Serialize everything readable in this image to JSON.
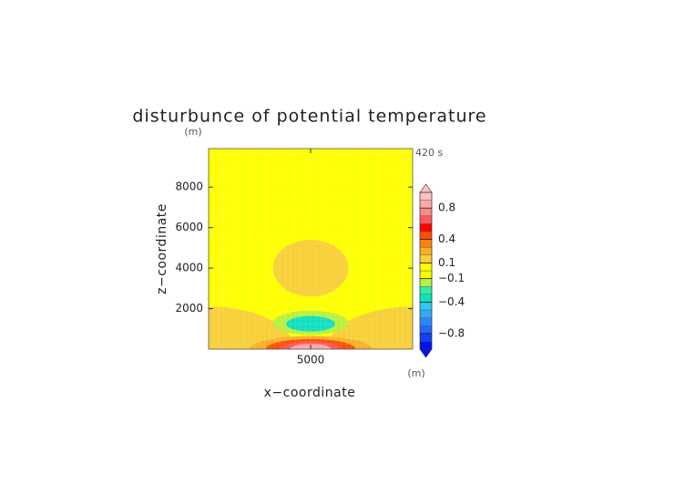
{
  "chart_data": {
    "type": "contour",
    "title": "disturbunce of potential temperature",
    "time_label": "420 s",
    "x_label": "x−coordinate",
    "y_label": "z−coordinate",
    "x_unit": "(m)",
    "y_unit": "(m)",
    "xlim": [
      0,
      10000
    ],
    "ylim": [
      0,
      9900
    ],
    "xticks": [
      5000
    ],
    "yticks": [
      2000,
      4000,
      6000,
      8000
    ],
    "levels": [
      -1,
      -0.9,
      -0.8,
      -0.7,
      -0.6,
      -0.5,
      -0.4,
      -0.3,
      -0.2,
      -0.1,
      0,
      0.1,
      0.2,
      0.3,
      0.4,
      0.5,
      0.6,
      0.7,
      0.8,
      0.9,
      1
    ],
    "colors": [
      "#0010f0",
      "#1040ff",
      "#2068ff",
      "#2888ff",
      "#30a8ff",
      "#30c8f8",
      "#10e0c0",
      "#30f0a0",
      "#b8f040",
      "#ffff00",
      "#ffff00",
      "#f8d038",
      "#f8b028",
      "#ff8010",
      "#ff5000",
      "#ff0000",
      "#ff5858",
      "#ff8888",
      "#ffa8a8",
      "#ffc0c0"
    ],
    "colorbar_ticks": [
      0.8,
      0.4,
      0.1,
      {
        "value": -0.1,
        "label": "−0.1"
      },
      {
        "value": -0.4,
        "label": "−0.4"
      },
      {
        "value": -0.8,
        "label": "−0.8"
      }
    ],
    "background_value": 0.05,
    "regions": [
      {
        "x": 0,
        "z": 0,
        "rx": 4200,
        "rz": 2100,
        "value": 0.15
      },
      {
        "x": 10000,
        "z": 0,
        "rx": 4200,
        "rz": 2100,
        "value": 0.15
      },
      {
        "x": 5000,
        "z": 4000,
        "rx": 1850,
        "rz": 1400,
        "value": 0.15
      },
      {
        "x": 5000,
        "z": 1300,
        "rx": 1850,
        "rz": 600,
        "value": -0.15
      },
      {
        "x": 5000,
        "z": 1250,
        "rx": 1200,
        "rz": 380,
        "value": -0.35
      },
      {
        "x": 5000,
        "z": 0,
        "rx": 3000,
        "rz": 650,
        "value": 0.25
      },
      {
        "x": 5000,
        "z": 0,
        "rx": 2200,
        "rz": 500,
        "value": 0.45
      },
      {
        "x": 5000,
        "z": 0,
        "rx": 1500,
        "rz": 380,
        "value": 0.65
      },
      {
        "x": 5000,
        "z": 0,
        "rx": 1000,
        "rz": 260,
        "value": 0.85
      }
    ]
  }
}
